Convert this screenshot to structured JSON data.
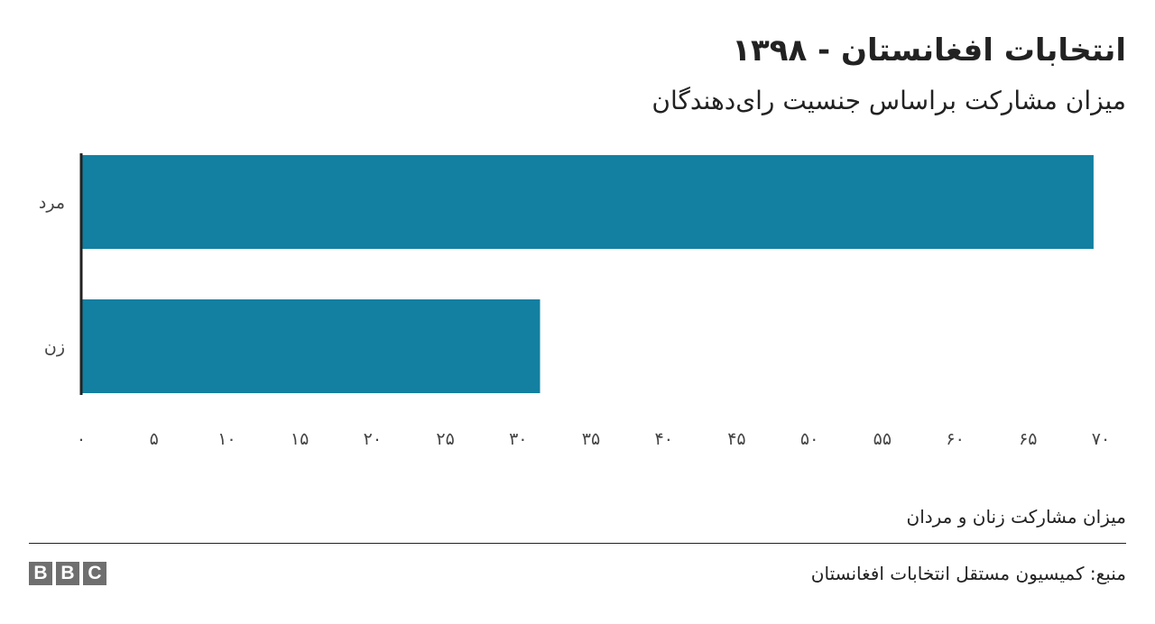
{
  "header": {
    "title": "انتخابات افغانستان - ۱۳۹۸",
    "subtitle": "میزان مشارکت براساس جنسیت رای‌دهندگان"
  },
  "chart_data": {
    "type": "bar",
    "orientation": "horizontal",
    "categories": [
      "مرد",
      "زن"
    ],
    "values": [
      69.5,
      31.5
    ],
    "xlim": [
      0,
      70
    ],
    "x_ticks": [
      0,
      5,
      10,
      15,
      20,
      25,
      30,
      35,
      40,
      45,
      50,
      55,
      60,
      65,
      70
    ],
    "x_tick_labels": [
      "۰",
      "۵",
      "۱۰",
      "۱۵",
      "۲۰",
      "۲۵",
      "۳۰",
      "۳۵",
      "۴۰",
      "۴۵",
      "۵۰",
      "۵۵",
      "۶۰",
      "۶۵",
      "۷۰"
    ],
    "bar_color": "#1380a1",
    "grid": false
  },
  "footer": {
    "note": "میزان مشارکت زنان و مردان",
    "source": "منبع: کمیسیون مستقل انتخابات افغانستان",
    "logo_letters": [
      "B",
      "B",
      "C"
    ]
  }
}
